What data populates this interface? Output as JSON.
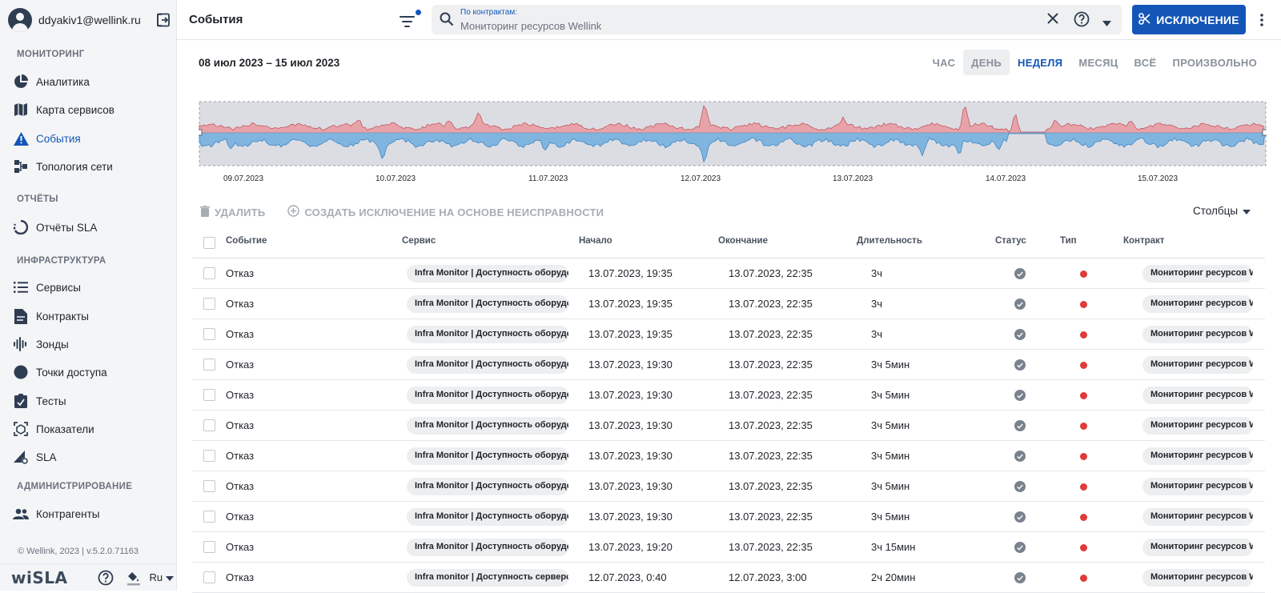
{
  "user": {
    "email": "ddyakiv1@wellink.ru"
  },
  "sidebar": {
    "sections": [
      {
        "label": "МОНИТОРИНГ"
      },
      {
        "label": "ОТЧЁТЫ"
      },
      {
        "label": "ИНФРАСТРУКТУРА"
      },
      {
        "label": "АДМИНИСТРИРОВАНИЕ"
      }
    ],
    "items": [
      {
        "label": "Аналитика",
        "icon": "pie-chart-icon"
      },
      {
        "label": "Карта сервисов",
        "icon": "map-icon"
      },
      {
        "label": "События",
        "icon": "warning-icon",
        "active": true
      },
      {
        "label": "Топология сети",
        "icon": "topology-icon"
      },
      {
        "label": "Отчёты SLA",
        "icon": "sla-report-icon"
      },
      {
        "label": "Сервисы",
        "icon": "list-icon"
      },
      {
        "label": "Контракты",
        "icon": "document-icon"
      },
      {
        "label": "Зонды",
        "icon": "probe-icon"
      },
      {
        "label": "Точки доступа",
        "icon": "access-point-icon"
      },
      {
        "label": "Тесты",
        "icon": "tests-icon"
      },
      {
        "label": "Показатели",
        "icon": "metrics-icon"
      },
      {
        "label": "SLA",
        "icon": "sla-icon"
      },
      {
        "label": "Контрагенты",
        "icon": "people-icon"
      }
    ],
    "copyright": "© Wellink, 2023 | v.5.2.0.71163",
    "logo": "wiSLA",
    "language": "Ru"
  },
  "header": {
    "title": "События",
    "search_label": "По контрактам:",
    "search_value": "Мониторинг ресурсов Wellink",
    "exclusion_button": "ИСКЛЮЧЕНИЕ"
  },
  "timeline": {
    "range": "08 июл 2023 – 15 июл 2023",
    "periods": [
      "ЧАС",
      "ДЕНЬ",
      "НЕДЕЛЯ",
      "МЕСЯЦ",
      "ВСЁ",
      "ПРОИЗВОЛЬНО"
    ],
    "selected_period": "НЕДЕЛЯ",
    "ticks": [
      "09.07.2023",
      "10.07.2023",
      "11.07.2023",
      "12.07.2023",
      "13.07.2023",
      "14.07.2023",
      "15.07.2023"
    ],
    "colors": {
      "upper": "#e8a3a8",
      "lower": "#7fb5df"
    }
  },
  "actions": {
    "delete": "УДАЛИТЬ",
    "create_exclusion": "СОЗДАТЬ ИСКЛЮЧЕНИЕ НА ОСНОВЕ НЕИСПРАВНОСТИ",
    "columns": "Столбцы"
  },
  "table": {
    "headers": [
      "Событие",
      "Сервис",
      "Начало",
      "Окончание",
      "Длительность",
      "Статус",
      "Тип",
      "Контракт"
    ],
    "rows": [
      {
        "event": "Отказ",
        "service": "Infra Monitor | Доступность оборудования",
        "start": "13.07.2023, 19:35",
        "end": "13.07.2023, 22:35",
        "duration": "3ч",
        "contract": "Мониторинг ресурсов Wellink"
      },
      {
        "event": "Отказ",
        "service": "Infra Monitor | Доступность оборудования",
        "start": "13.07.2023, 19:35",
        "end": "13.07.2023, 22:35",
        "duration": "3ч",
        "contract": "Мониторинг ресурсов Wellink"
      },
      {
        "event": "Отказ",
        "service": "Infra Monitor | Доступность оборудования",
        "start": "13.07.2023, 19:35",
        "end": "13.07.2023, 22:35",
        "duration": "3ч",
        "contract": "Мониторинг ресурсов Wellink"
      },
      {
        "event": "Отказ",
        "service": "Infra Monitor | Доступность оборудования",
        "start": "13.07.2023, 19:30",
        "end": "13.07.2023, 22:35",
        "duration": "3ч 5мин",
        "contract": "Мониторинг ресурсов Wellink"
      },
      {
        "event": "Отказ",
        "service": "Infra Monitor | Доступность оборудования",
        "start": "13.07.2023, 19:30",
        "end": "13.07.2023, 22:35",
        "duration": "3ч 5мин",
        "contract": "Мониторинг ресурсов Wellink"
      },
      {
        "event": "Отказ",
        "service": "Infra Monitor | Доступность оборудования",
        "start": "13.07.2023, 19:30",
        "end": "13.07.2023, 22:35",
        "duration": "3ч 5мин",
        "contract": "Мониторинг ресурсов Wellink"
      },
      {
        "event": "Отказ",
        "service": "Infra Monitor | Доступность оборудования",
        "start": "13.07.2023, 19:30",
        "end": "13.07.2023, 22:35",
        "duration": "3ч 5мин",
        "contract": "Мониторинг ресурсов Wellink"
      },
      {
        "event": "Отказ",
        "service": "Infra Monitor | Доступность оборудования",
        "start": "13.07.2023, 19:30",
        "end": "13.07.2023, 22:35",
        "duration": "3ч 5мин",
        "contract": "Мониторинг ресурсов Wellink"
      },
      {
        "event": "Отказ",
        "service": "Infra Monitor | Доступность оборудования",
        "start": "13.07.2023, 19:30",
        "end": "13.07.2023, 22:35",
        "duration": "3ч 5мин",
        "contract": "Мониторинг ресурсов Wellink"
      },
      {
        "event": "Отказ",
        "service": "Infra Monitor | Доступность оборудования",
        "start": "13.07.2023, 19:20",
        "end": "13.07.2023, 22:35",
        "duration": "3ч 15мин",
        "contract": "Мониторинг ресурсов Wellink"
      },
      {
        "event": "Отказ",
        "service": "Infra monitor | Доступность серверов",
        "start": "12.07.2023, 0:40",
        "end": "12.07.2023, 3:00",
        "duration": "2ч 20мин",
        "contract": "Мониторинг ресурсов Wellink"
      }
    ]
  }
}
